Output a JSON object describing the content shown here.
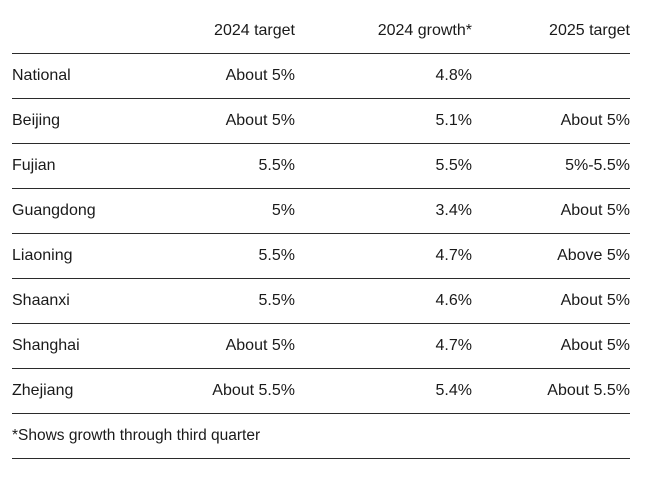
{
  "table": {
    "headers": {
      "region": "",
      "target_2024": "2024 target",
      "growth_2024": "2024 growth*",
      "target_2025": "2025 target"
    },
    "rows": [
      {
        "region": "National",
        "target_2024": "About 5%",
        "growth_2024": "4.8%",
        "target_2025": ""
      },
      {
        "region": "Beijing",
        "target_2024": "About 5%",
        "growth_2024": "5.1%",
        "target_2025": "About 5%"
      },
      {
        "region": "Fujian",
        "target_2024": "5.5%",
        "growth_2024": "5.5%",
        "target_2025": "5%-5.5%"
      },
      {
        "region": "Guangdong",
        "target_2024": "5%",
        "growth_2024": "3.4%",
        "target_2025": "About 5%"
      },
      {
        "region": "Liaoning",
        "target_2024": "5.5%",
        "growth_2024": "4.7%",
        "target_2025": "Above 5%"
      },
      {
        "region": "Shaanxi",
        "target_2024": "5.5%",
        "growth_2024": "4.6%",
        "target_2025": "About 5%"
      },
      {
        "region": "Shanghai",
        "target_2024": "About 5%",
        "growth_2024": "4.7%",
        "target_2025": "About 5%"
      },
      {
        "region": "Zhejiang",
        "target_2024": "About 5.5%",
        "growth_2024": "5.4%",
        "target_2025": "About 5.5%"
      }
    ],
    "footnote": "*Shows growth through third quarter"
  }
}
